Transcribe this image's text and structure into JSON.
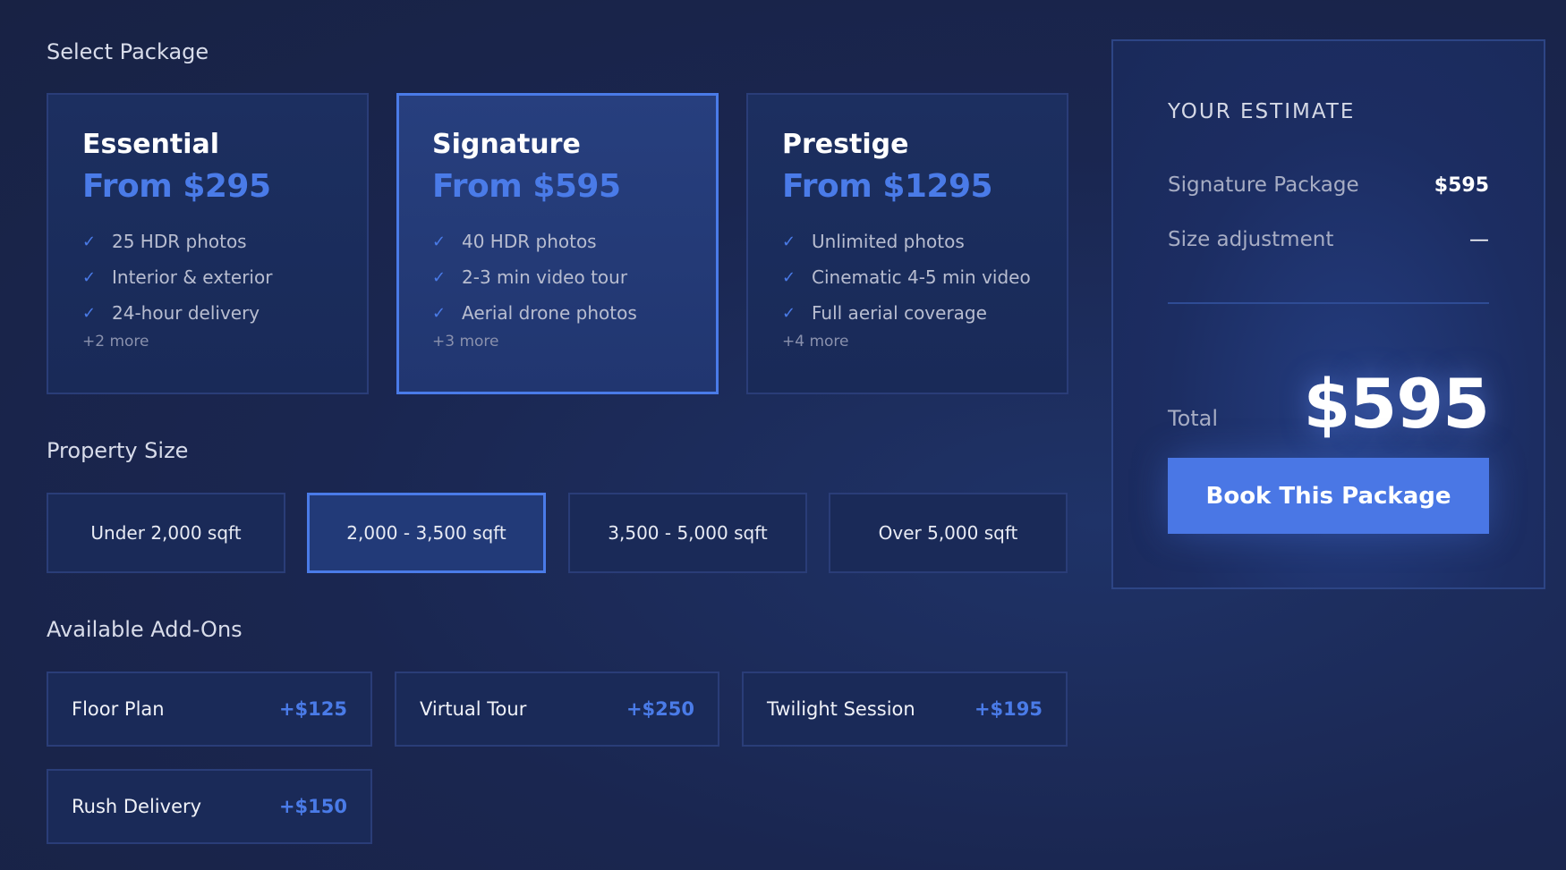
{
  "sections": {
    "package": "Select Package",
    "size": "Property Size",
    "addons": "Available Add-Ons"
  },
  "packages": [
    {
      "name": "Essential",
      "price": "From $295",
      "features": [
        "25 HDR photos",
        "Interior & exterior",
        "24-hour delivery"
      ],
      "more": "+2 more",
      "selected": false
    },
    {
      "name": "Signature",
      "price": "From $595",
      "features": [
        "40 HDR photos",
        "2-3 min video tour",
        "Aerial drone photos"
      ],
      "more": "+3 more",
      "selected": true
    },
    {
      "name": "Prestige",
      "price": "From $1295",
      "features": [
        "Unlimited photos",
        "Cinematic 4-5 min video",
        "Full aerial coverage"
      ],
      "more": "+4 more",
      "selected": false
    }
  ],
  "sizes": [
    {
      "label": "Under 2,000 sqft"
    },
    {
      "label": "2,000 - 3,500 sqft",
      "selected": true
    },
    {
      "label": "3,500 - 5,000 sqft"
    },
    {
      "label": "Over 5,000 sqft"
    }
  ],
  "addons": [
    {
      "name": "Floor Plan",
      "price": "+$125"
    },
    {
      "name": "Virtual Tour",
      "price": "+$250"
    },
    {
      "name": "Twilight Session",
      "price": "+$195"
    },
    {
      "name": "Rush Delivery",
      "price": "+$150"
    }
  ],
  "estimate": {
    "title": "YOUR ESTIMATE",
    "package_label": "Signature Package",
    "package_price": "$595",
    "size_label": "Size adjustment",
    "size_value": "—",
    "total_label": "Total",
    "total": "$595",
    "book": "Book This Package"
  },
  "colors": {
    "accent": "#4a7be8",
    "background": "#1a2650"
  },
  "icons": {
    "feature": "check-icon"
  }
}
